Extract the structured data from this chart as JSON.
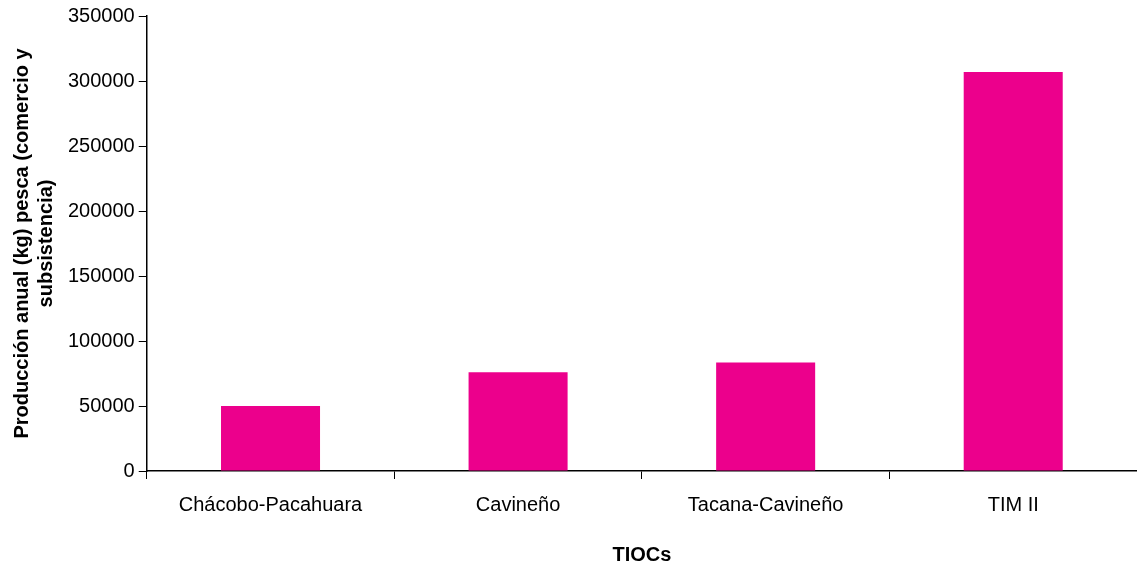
{
  "chart_data": {
    "type": "bar",
    "xlabel": "TIOCs",
    "ylabel": "Producción anual (kg) pesca (comercio y subsistencia)",
    "categories": [
      "Chácobo-Pacahuara",
      "Cavineño",
      "Tacana-Cavineño",
      "TIM II"
    ],
    "values": [
      50000,
      76000,
      83500,
      307000
    ],
    "color": "#ec008c",
    "ylim": [
      0,
      350000
    ],
    "yticks": [
      0,
      50000,
      100000,
      150000,
      200000,
      250000,
      300000,
      350000
    ],
    "grid": false,
    "legend": false
  }
}
